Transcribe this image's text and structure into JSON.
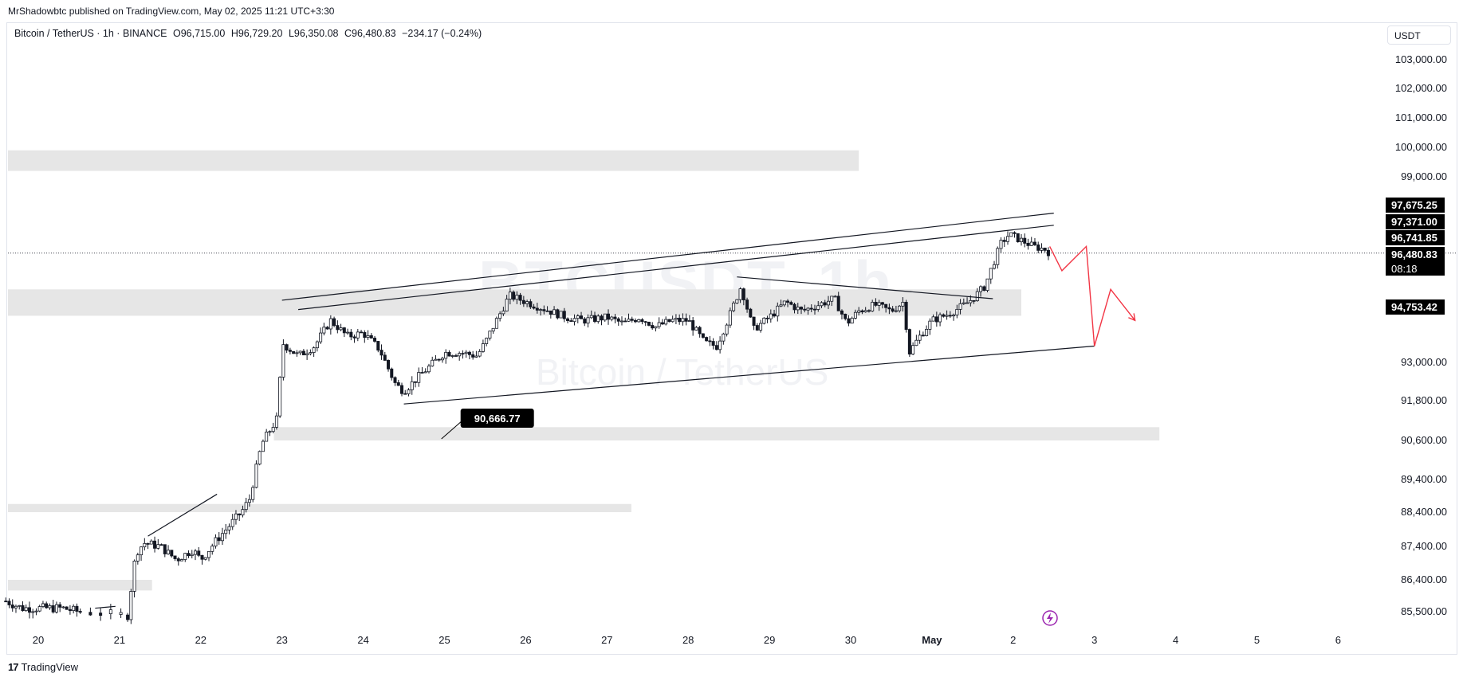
{
  "header": {
    "published": "MrShadowbtc published on TradingView.com, May 02, 2025 11:21 UTC+3:30",
    "symbol": "Bitcoin / TetherUS · 1h · BINANCE",
    "open": "O96,715.00",
    "high": "H96,729.20",
    "low": "L96,350.08",
    "close": "C96,480.83",
    "change": "−234.17 (−0.24%)"
  },
  "currency_button": "USDT",
  "watermark": {
    "ticker": "BTCUSDT, 1h",
    "name": "Bitcoin / TetherUS"
  },
  "footer": {
    "brand_mark": "17",
    "brand": "TradingView"
  },
  "colors": {
    "candle": "#131722",
    "zone": "#e6e6e6",
    "projection": "#f23645",
    "label_bg": "#000000",
    "event_icon": "#9c27b0"
  },
  "chart_data": {
    "type": "candlestick",
    "symbol": "BTCUSDT",
    "interval": "1h",
    "x_ticks": [
      "20",
      "21",
      "22",
      "23",
      "24",
      "25",
      "26",
      "27",
      "28",
      "29",
      "30",
      "May",
      "2",
      "3",
      "4",
      "5",
      "6"
    ],
    "y_ticks": [
      "103,000.00",
      "102,000.00",
      "101,000.00",
      "100,000.00",
      "99,000.00",
      "93,000.00",
      "91,800.00",
      "90,600.00",
      "89,400.00",
      "88,400.00",
      "87,400.00",
      "86,400.00",
      "85,500.00"
    ],
    "price_labels": [
      {
        "text": "97,675.25",
        "value": 97675.25
      },
      {
        "text": "97,371.00",
        "value": 97371.0
      },
      {
        "text": "96,741.85",
        "value": 96741.85
      },
      {
        "text": "96,480.83",
        "value": 96480.83,
        "countdown": "08:18"
      },
      {
        "text": "94,753.42",
        "value": 94753.42
      }
    ],
    "annotation": {
      "text": "90,666.77",
      "value": 90666.77,
      "day": 25.1
    },
    "current_price": 96480.83,
    "zones": [
      {
        "from_day": 19.6,
        "to_day": 30.1,
        "low": 99200,
        "high": 99900
      },
      {
        "from_day": 19.6,
        "to_day": 32.1,
        "low": 94450,
        "high": 95300
      },
      {
        "from_day": 22.9,
        "to_day": 33.8,
        "low": 90600,
        "high": 91000
      },
      {
        "from_day": 19.6,
        "to_day": 27.3,
        "low": 88400,
        "high": 88650
      },
      {
        "from_day": 19.6,
        "to_day": 21.4,
        "low": 86100,
        "high": 86400
      }
    ],
    "trendlines": [
      {
        "x1": 23.0,
        "y1": 94950,
        "x2": 32.5,
        "y2": 97800
      },
      {
        "x1": 23.2,
        "y1": 94650,
        "x2": 32.5,
        "y2": 97400
      },
      {
        "x1": 24.5,
        "y1": 91700,
        "x2": 33.0,
        "y2": 93500
      },
      {
        "x1": 28.6,
        "y1": 95700,
        "x2": 31.75,
        "y2": 95000
      },
      {
        "x1": 21.35,
        "y1": 87700,
        "x2": 22.2,
        "y2": 88950
      },
      {
        "x1": 20.7,
        "y1": 85600,
        "x2": 20.95,
        "y2": 85650
      }
    ],
    "projection": [
      {
        "x": 32.45,
        "y": 96700
      },
      {
        "x": 32.6,
        "y": 95900
      },
      {
        "x": 32.9,
        "y": 96700
      },
      {
        "x": 33.0,
        "y": 93500
      },
      {
        "x": 33.2,
        "y": 95300
      },
      {
        "x": 33.5,
        "y": 94300
      }
    ],
    "anchors": [
      {
        "day": 19.6,
        "price": 85800
      },
      {
        "day": 19.8,
        "price": 85600
      },
      {
        "day": 20.3,
        "price": 85600
      },
      {
        "day": 20.5,
        "price": 85500
      },
      {
        "day": 21.1,
        "price": 85400
      },
      {
        "day": 21.2,
        "price": 87200
      },
      {
        "day": 21.3,
        "price": 87500
      },
      {
        "day": 21.5,
        "price": 87400
      },
      {
        "day": 21.7,
        "price": 87000
      },
      {
        "day": 21.9,
        "price": 87300
      },
      {
        "day": 22.0,
        "price": 87000
      },
      {
        "day": 22.2,
        "price": 87600
      },
      {
        "day": 22.5,
        "price": 88400
      },
      {
        "day": 22.6,
        "price": 88800
      },
      {
        "day": 22.75,
        "price": 90500
      },
      {
        "day": 22.95,
        "price": 91300
      },
      {
        "day": 23.0,
        "price": 93600
      },
      {
        "day": 23.2,
        "price": 93200
      },
      {
        "day": 23.4,
        "price": 93500
      },
      {
        "day": 23.6,
        "price": 94300
      },
      {
        "day": 23.8,
        "price": 93800
      },
      {
        "day": 24.0,
        "price": 93900
      },
      {
        "day": 24.2,
        "price": 93400
      },
      {
        "day": 24.4,
        "price": 92300
      },
      {
        "day": 24.5,
        "price": 92100
      },
      {
        "day": 24.7,
        "price": 92600
      },
      {
        "day": 25.0,
        "price": 93300
      },
      {
        "day": 25.2,
        "price": 93300
      },
      {
        "day": 25.4,
        "price": 93200
      },
      {
        "day": 25.5,
        "price": 93600
      },
      {
        "day": 25.6,
        "price": 94100
      },
      {
        "day": 25.8,
        "price": 95100
      },
      {
        "day": 26.0,
        "price": 94900
      },
      {
        "day": 26.2,
        "price": 94700
      },
      {
        "day": 26.5,
        "price": 94400
      },
      {
        "day": 26.7,
        "price": 94300
      },
      {
        "day": 27.0,
        "price": 94400
      },
      {
        "day": 27.2,
        "price": 94200
      },
      {
        "day": 27.4,
        "price": 94400
      },
      {
        "day": 27.6,
        "price": 94100
      },
      {
        "day": 27.8,
        "price": 94300
      },
      {
        "day": 28.0,
        "price": 94300
      },
      {
        "day": 28.2,
        "price": 93600
      },
      {
        "day": 28.35,
        "price": 93500
      },
      {
        "day": 28.5,
        "price": 94400
      },
      {
        "day": 28.65,
        "price": 95400
      },
      {
        "day": 28.8,
        "price": 94000
      },
      {
        "day": 29.0,
        "price": 94400
      },
      {
        "day": 29.2,
        "price": 94900
      },
      {
        "day": 29.4,
        "price": 94600
      },
      {
        "day": 29.6,
        "price": 94800
      },
      {
        "day": 29.8,
        "price": 95000
      },
      {
        "day": 29.95,
        "price": 94200
      },
      {
        "day": 30.1,
        "price": 94600
      },
      {
        "day": 30.3,
        "price": 94800
      },
      {
        "day": 30.5,
        "price": 94600
      },
      {
        "day": 30.65,
        "price": 94900
      },
      {
        "day": 30.72,
        "price": 93300
      },
      {
        "day": 30.85,
        "price": 93800
      },
      {
        "day": 31.0,
        "price": 94300
      },
      {
        "day": 31.2,
        "price": 94500
      },
      {
        "day": 31.4,
        "price": 94800
      },
      {
        "day": 31.5,
        "price": 95000
      },
      {
        "day": 31.65,
        "price": 95400
      },
      {
        "day": 31.75,
        "price": 96100
      },
      {
        "day": 31.85,
        "price": 96800
      },
      {
        "day": 31.95,
        "price": 97100
      },
      {
        "day": 32.1,
        "price": 96900
      },
      {
        "day": 32.25,
        "price": 96700
      },
      {
        "day": 32.4,
        "price": 96600
      },
      {
        "day": 32.45,
        "price": 96480
      }
    ]
  }
}
